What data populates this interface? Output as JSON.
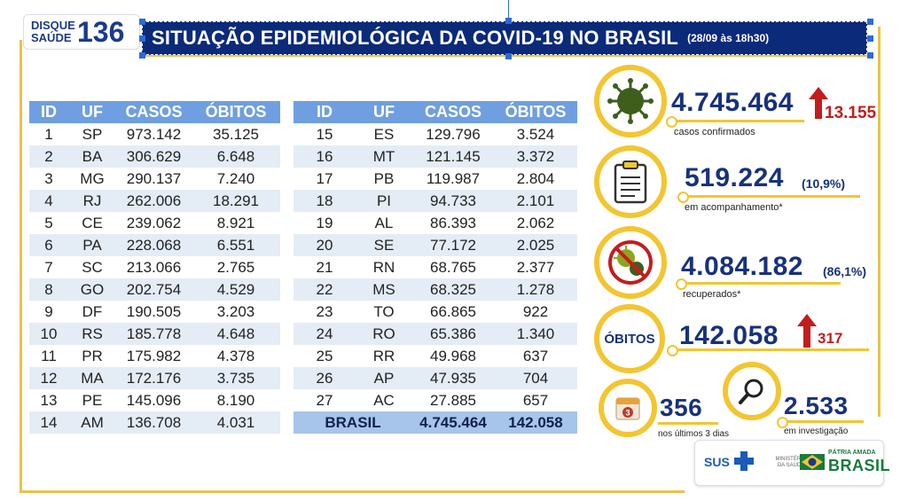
{
  "logo": {
    "top": "DISQUE",
    "bottom": "SAÚDE",
    "number": "136"
  },
  "header": {
    "title": "SITUAÇÃO EPIDEMIOLÓGICA DA COVID-19 NO BRASIL",
    "timestamp": "(28/09 às 18h30)"
  },
  "table": {
    "headers": [
      "ID",
      "UF",
      "CASOS",
      "ÓBITOS"
    ],
    "left": [
      [
        "1",
        "SP",
        "973.142",
        "35.125"
      ],
      [
        "2",
        "BA",
        "306.629",
        "6.648"
      ],
      [
        "3",
        "MG",
        "290.137",
        "7.240"
      ],
      [
        "4",
        "RJ",
        "262.006",
        "18.291"
      ],
      [
        "5",
        "CE",
        "239.062",
        "8.921"
      ],
      [
        "6",
        "PA",
        "228.068",
        "6.551"
      ],
      [
        "7",
        "SC",
        "213.066",
        "2.765"
      ],
      [
        "8",
        "GO",
        "202.754",
        "4.529"
      ],
      [
        "9",
        "DF",
        "190.505",
        "3.203"
      ],
      [
        "10",
        "RS",
        "185.778",
        "4.648"
      ],
      [
        "11",
        "PR",
        "175.982",
        "4.378"
      ],
      [
        "12",
        "MA",
        "172.176",
        "3.735"
      ],
      [
        "13",
        "PE",
        "145.096",
        "8.190"
      ],
      [
        "14",
        "AM",
        "136.708",
        "4.031"
      ]
    ],
    "right": [
      [
        "15",
        "ES",
        "129.796",
        "3.524"
      ],
      [
        "16",
        "MT",
        "121.145",
        "3.372"
      ],
      [
        "17",
        "PB",
        "119.987",
        "2.804"
      ],
      [
        "18",
        "PI",
        "94.733",
        "2.101"
      ],
      [
        "19",
        "AL",
        "86.393",
        "2.062"
      ],
      [
        "20",
        "SE",
        "77.172",
        "2.025"
      ],
      [
        "21",
        "RN",
        "68.765",
        "2.377"
      ],
      [
        "22",
        "MS",
        "68.325",
        "1.278"
      ],
      [
        "23",
        "TO",
        "66.865",
        "922"
      ],
      [
        "24",
        "RO",
        "65.386",
        "1.340"
      ],
      [
        "25",
        "RR",
        "49.968",
        "637"
      ],
      [
        "26",
        "AP",
        "47.935",
        "704"
      ],
      [
        "27",
        "AC",
        "27.885",
        "657"
      ]
    ],
    "total": {
      "label": "BRASIL",
      "casos": "4.745.464",
      "obitos": "142.058"
    }
  },
  "stats": {
    "confirmados": {
      "value": "4.745.464",
      "delta": "13.155",
      "label": "casos confirmados",
      "icon": "virus-icon"
    },
    "acompanhamento": {
      "value": "519.224",
      "pct": "(10,9%)",
      "label": "em acompanhamento*",
      "icon": "clipboard-icon"
    },
    "recuperados": {
      "value": "4.084.182",
      "pct": "(86,1%)",
      "label": "recuperados*",
      "icon": "virus-crossed-icon"
    },
    "obitos": {
      "circle_label": "ÓBITOS",
      "value": "142.058",
      "delta": "317"
    },
    "ultimos": {
      "value": "356",
      "label": "nos últimos 3 dias",
      "calendar_day": "3",
      "icon": "calendar-icon"
    },
    "investigacao": {
      "value": "2.533",
      "label": "em investigação",
      "icon": "magnifier-icon"
    }
  },
  "footer": {
    "sus": "SUS",
    "ministerio": "MINISTÉRIO DA SAÚDE",
    "patria": "PÁTRIA AMADA",
    "brasil": "BRASIL"
  },
  "colors": {
    "navy": "#0b2a7a",
    "gold": "#f3c531",
    "table_header": "#6f9fe0",
    "red": "#c31d1d"
  }
}
